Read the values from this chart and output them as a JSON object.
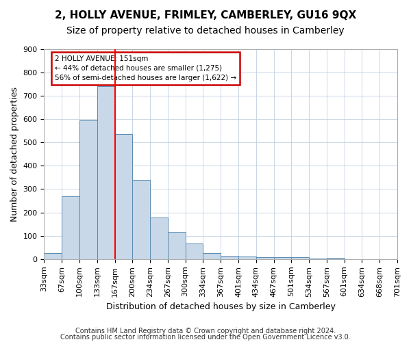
{
  "title": "2, HOLLY AVENUE, FRIMLEY, CAMBERLEY, GU16 9QX",
  "subtitle": "Size of property relative to detached houses in Camberley",
  "xlabel": "Distribution of detached houses by size in Camberley",
  "ylabel": "Number of detached properties",
  "bin_labels": [
    "33sqm",
    "67sqm",
    "100sqm",
    "133sqm",
    "167sqm",
    "200sqm",
    "234sqm",
    "267sqm",
    "300sqm",
    "334sqm",
    "367sqm",
    "401sqm",
    "434sqm",
    "467sqm",
    "501sqm",
    "534sqm",
    "567sqm",
    "601sqm",
    "634sqm",
    "668sqm",
    "701sqm"
  ],
  "bar_values": [
    27,
    270,
    595,
    740,
    535,
    338,
    178,
    117,
    67,
    25,
    14,
    12,
    10,
    9,
    8,
    2,
    7,
    0,
    0,
    0
  ],
  "bar_color": "#c8d8e8",
  "bar_edge_color": "#5a8ab0",
  "annotation_text": "2 HOLLY AVENUE: 151sqm\n← 44% of detached houses are smaller (1,275)\n56% of semi-detached houses are larger (1,622) →",
  "annotation_box_color": "#ffffff",
  "annotation_box_edge": "#cc0000",
  "footer_line1": "Contains HM Land Registry data © Crown copyright and database right 2024.",
  "footer_line2": "Contains public sector information licensed under the Open Government Licence v3.0.",
  "ylim": [
    0,
    900
  ],
  "yticks": [
    0,
    100,
    200,
    300,
    400,
    500,
    600,
    700,
    800,
    900
  ],
  "title_fontsize": 11,
  "subtitle_fontsize": 10,
  "axis_label_fontsize": 9,
  "tick_fontsize": 8,
  "footer_fontsize": 7
}
